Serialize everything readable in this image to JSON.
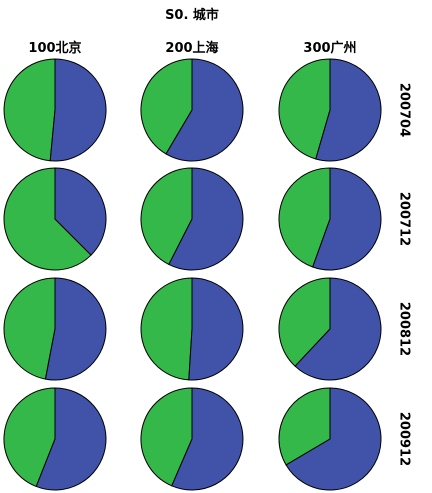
{
  "chart_data": {
    "type": "pie",
    "title": "S0. 城市",
    "columns": [
      "100北京",
      "200上海",
      "300广州"
    ],
    "rows": [
      "200704",
      "200712",
      "200812",
      "200912"
    ],
    "colors": {
      "blue": "#4053a8",
      "green": "#35b84a",
      "edge": "#000000"
    },
    "series_note": "",
    "cells": [
      [
        {
          "blue": 0.515,
          "green": 0.485
        },
        {
          "blue": 0.585,
          "green": 0.415
        },
        {
          "blue": 0.545,
          "green": 0.455
        }
      ],
      [
        {
          "blue": 0.375,
          "green": 0.625
        },
        {
          "blue": 0.575,
          "green": 0.425
        },
        {
          "blue": 0.555,
          "green": 0.445
        }
      ],
      [
        {
          "blue": 0.53,
          "green": 0.47
        },
        {
          "blue": 0.51,
          "green": 0.49
        },
        {
          "blue": 0.62,
          "green": 0.38
        }
      ],
      [
        {
          "blue": 0.56,
          "green": 0.44
        },
        {
          "blue": 0.565,
          "green": 0.435
        },
        {
          "blue": 0.665,
          "green": 0.335
        }
      ]
    ]
  }
}
